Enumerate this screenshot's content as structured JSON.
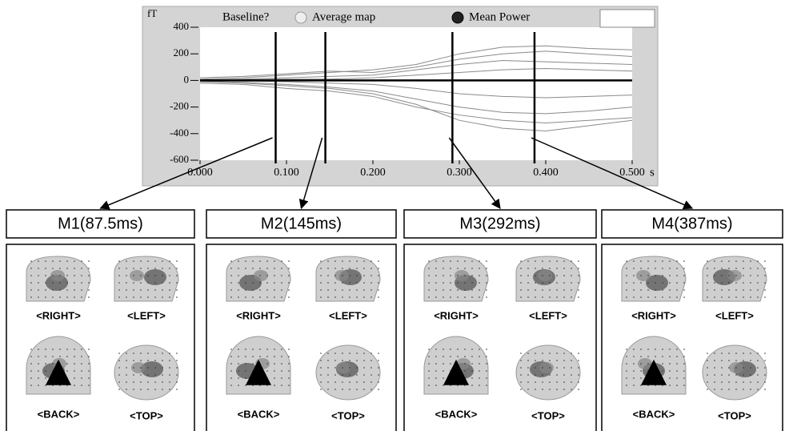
{
  "chart_data": {
    "type": "line",
    "y_label": "fT",
    "x_unit": "s",
    "controls": {
      "baseline": "Baseline?",
      "average_map": "Average map",
      "mean_power": "Mean Power"
    },
    "x": [
      0,
      0.05,
      0.1,
      0.15,
      0.2,
      0.25,
      0.3,
      0.35,
      0.4,
      0.45,
      0.5
    ],
    "series": [
      {
        "color": "#8a8a8a",
        "values": [
          10,
          20,
          40,
          60,
          80,
          120,
          200,
          250,
          260,
          240,
          230
        ]
      },
      {
        "color": "#8a8a8a",
        "values": [
          -10,
          -20,
          -40,
          -60,
          -100,
          -180,
          -300,
          -360,
          -380,
          -340,
          -300
        ]
      },
      {
        "color": "#8a8a8a",
        "values": [
          5,
          10,
          20,
          30,
          40,
          80,
          120,
          150,
          140,
          130,
          120
        ]
      },
      {
        "color": "#8a8a8a",
        "values": [
          -5,
          -15,
          -30,
          -50,
          -80,
          -140,
          -200,
          -240,
          -250,
          -230,
          -200
        ]
      },
      {
        "color": "#8a8a8a",
        "values": [
          20,
          30,
          50,
          70,
          60,
          100,
          160,
          200,
          220,
          200,
          180
        ]
      },
      {
        "color": "#8a8a8a",
        "values": [
          -20,
          -30,
          -60,
          -80,
          -120,
          -200,
          -260,
          -300,
          -320,
          -300,
          -280
        ]
      },
      {
        "color": "#8a8a8a",
        "values": [
          0,
          5,
          10,
          10,
          20,
          40,
          60,
          80,
          90,
          80,
          70
        ]
      },
      {
        "color": "#8a8a8a",
        "values": [
          0,
          -5,
          -10,
          -20,
          -30,
          -60,
          -100,
          -120,
          -130,
          -120,
          -110
        ]
      }
    ],
    "xlim": [
      0,
      0.5
    ],
    "xticks": [
      {
        "value": 0,
        "label": "0.000"
      },
      {
        "value": 0.1,
        "label": "0.100"
      },
      {
        "value": 0.2,
        "label": "0.200"
      },
      {
        "value": 0.3,
        "label": "0.300"
      },
      {
        "value": 0.4,
        "label": "0.400"
      },
      {
        "value": 0.5,
        "label": "0.500"
      }
    ],
    "ylim": [
      -600,
      400
    ],
    "yticks": [
      400,
      200,
      0,
      -200,
      -400,
      -600
    ],
    "markers": [
      0.0875,
      0.145,
      0.292,
      0.387
    ]
  },
  "panels": [
    {
      "title": "M1(87.5ms)",
      "views": [
        "<RIGHT>",
        "<LEFT>",
        "<BACK>",
        "<TOP>"
      ]
    },
    {
      "title": "M2(145ms)",
      "views": [
        "<RIGHT>",
        "<LEFT>",
        "<BACK>",
        "<TOP>"
      ]
    },
    {
      "title": "M3(292ms)",
      "views": [
        "<RIGHT>",
        "<LEFT>",
        "<BACK>",
        "<TOP>"
      ]
    },
    {
      "title": "M4(387ms)",
      "views": [
        "<RIGHT>",
        "<LEFT>",
        "<BACK>",
        "<TOP>"
      ]
    }
  ]
}
